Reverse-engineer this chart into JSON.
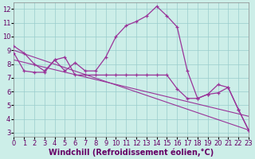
{
  "bg_color": "#cceee8",
  "line_color": "#993399",
  "grid_color": "#99cccc",
  "xlabel": "Windchill (Refroidissement éolien,°C)",
  "xlabel_fontsize": 7.0,
  "tick_fontsize": 6.0,
  "xlim": [
    0,
    23
  ],
  "ylim": [
    2.7,
    12.5
  ],
  "yticks": [
    3,
    4,
    5,
    6,
    7,
    8,
    9,
    10,
    11,
    12
  ],
  "xticks": [
    0,
    1,
    2,
    3,
    4,
    5,
    6,
    7,
    8,
    9,
    10,
    11,
    12,
    13,
    14,
    15,
    16,
    17,
    18,
    19,
    20,
    21,
    22,
    23
  ],
  "curve1_x": [
    0,
    1,
    2,
    3,
    4,
    5,
    6,
    7,
    8,
    9,
    10,
    11,
    12,
    13,
    14,
    15,
    16,
    17,
    18,
    19,
    20,
    21,
    22,
    23
  ],
  "curve1_y": [
    9.3,
    8.8,
    8.0,
    7.5,
    8.3,
    7.5,
    8.1,
    7.5,
    7.5,
    8.5,
    10.0,
    10.8,
    11.1,
    11.5,
    12.2,
    11.5,
    10.7,
    7.5,
    5.5,
    5.8,
    6.5,
    6.3,
    4.7,
    3.2
  ],
  "curve2_x": [
    0,
    1,
    2,
    3,
    4,
    5,
    6,
    7,
    8,
    9,
    10,
    11,
    12,
    13,
    14,
    15,
    16,
    17,
    18,
    19,
    20,
    21,
    22,
    23
  ],
  "curve2_y": [
    8.8,
    7.5,
    7.4,
    7.4,
    8.3,
    8.5,
    7.2,
    7.2,
    7.2,
    7.2,
    7.2,
    7.2,
    7.2,
    7.2,
    7.2,
    7.2,
    6.2,
    5.5,
    5.5,
    5.8,
    5.9,
    6.3,
    4.7,
    3.2
  ],
  "trend1_x": [
    0,
    23
  ],
  "trend1_y": [
    9.0,
    3.2
  ],
  "trend2_x": [
    0,
    23
  ],
  "trend2_y": [
    8.3,
    4.2
  ]
}
